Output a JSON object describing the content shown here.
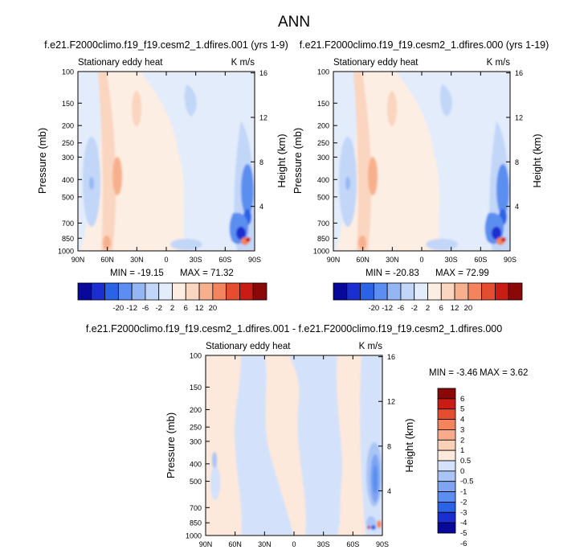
{
  "figure": {
    "title": "ANN"
  },
  "colors": {
    "div20": [
      "#08089a",
      "#1b2fd1",
      "#2a63e6",
      "#5b8ef0",
      "#95b6f5",
      "#c2d6f8",
      "#e2ecfb",
      "#fdeee4",
      "#fad5bf",
      "#f7b08e",
      "#f3845e",
      "#e44d2f",
      "#c81c14",
      "#8b0808"
    ],
    "diff": [
      "#08089a",
      "#1b2fd1",
      "#2a63e6",
      "#5b8ef0",
      "#7ea4f2",
      "#a9c4f6",
      "#d3e2fa",
      "#fde8dc",
      "#fad0b8",
      "#f7ab8b",
      "#f3845e",
      "#e44d2f",
      "#c81c14",
      "#8b0808"
    ]
  },
  "chart_data": [
    {
      "type": "heatmap",
      "title": "f.e21.F2000climo.f19_f19.cesm2_1.dfires.001 (yrs 1-9)",
      "left_label": "Stationary eddy heat",
      "right_label": "K m/s",
      "ylabel": "Pressure (mb)",
      "ylabel_right": "Height (km)",
      "x_ticks": [
        "90N",
        "60N",
        "30N",
        "0",
        "30S",
        "60S",
        "90S"
      ],
      "y_ticks": [
        "100",
        "150",
        "200",
        "250",
        "300",
        "400",
        "500",
        "700",
        "850",
        "1000"
      ],
      "y_right_ticks": [
        "16",
        "12",
        "8",
        "4"
      ],
      "min_label": "MIN = -19.15",
      "max_label": "MAX = 71.32",
      "min": -19.15,
      "max": 71.32,
      "colorbar_labels": [
        "-20",
        "-12",
        "-6",
        "-2",
        "2",
        "6",
        "12",
        "20"
      ]
    },
    {
      "type": "heatmap",
      "title": "f.e21.F2000climo.f19_f19.cesm2_1.dfires.000 (yrs 1-19)",
      "left_label": "Stationary eddy heat",
      "right_label": "K m/s",
      "ylabel": "Pressure (mb)",
      "ylabel_right": "Height (km)",
      "x_ticks": [
        "90N",
        "60N",
        "30N",
        "0",
        "30S",
        "60S",
        "90S"
      ],
      "y_ticks": [
        "100",
        "150",
        "200",
        "250",
        "300",
        "400",
        "500",
        "700",
        "850",
        "1000"
      ],
      "y_right_ticks": [
        "16",
        "12",
        "8",
        "4"
      ],
      "min_label": "MIN = -20.83",
      "max_label": "MAX = 72.99",
      "min": -20.83,
      "max": 72.99,
      "colorbar_labels": [
        "-20",
        "-12",
        "-6",
        "-2",
        "2",
        "6",
        "12",
        "20"
      ]
    },
    {
      "type": "heatmap",
      "title": "f.e21.F2000climo.f19_f19.cesm2_1.dfires.001 - f.e21.F2000climo.f19_f19.cesm2_1.dfires.000",
      "left_label": "Stationary eddy heat",
      "right_label": "K m/s",
      "ylabel": "Pressure (mb)",
      "ylabel_right": "Height (km)",
      "x_ticks": [
        "90N",
        "60N",
        "30N",
        "0",
        "30S",
        "60S",
        "90S"
      ],
      "y_ticks": [
        "100",
        "150",
        "200",
        "250",
        "300",
        "400",
        "500",
        "700",
        "850",
        "1000"
      ],
      "y_right_ticks": [
        "16",
        "12",
        "8",
        "4"
      ],
      "min_label": "MIN =  -3.46",
      "max_label": "MAX =   3.62",
      "min": -3.46,
      "max": 3.62,
      "colorbar_labels": [
        "6",
        "5",
        "4",
        "3",
        "2",
        "1",
        "0.5",
        "0",
        "-0.5",
        "-1",
        "-2",
        "-3",
        "-4",
        "-5",
        "-6"
      ]
    }
  ]
}
